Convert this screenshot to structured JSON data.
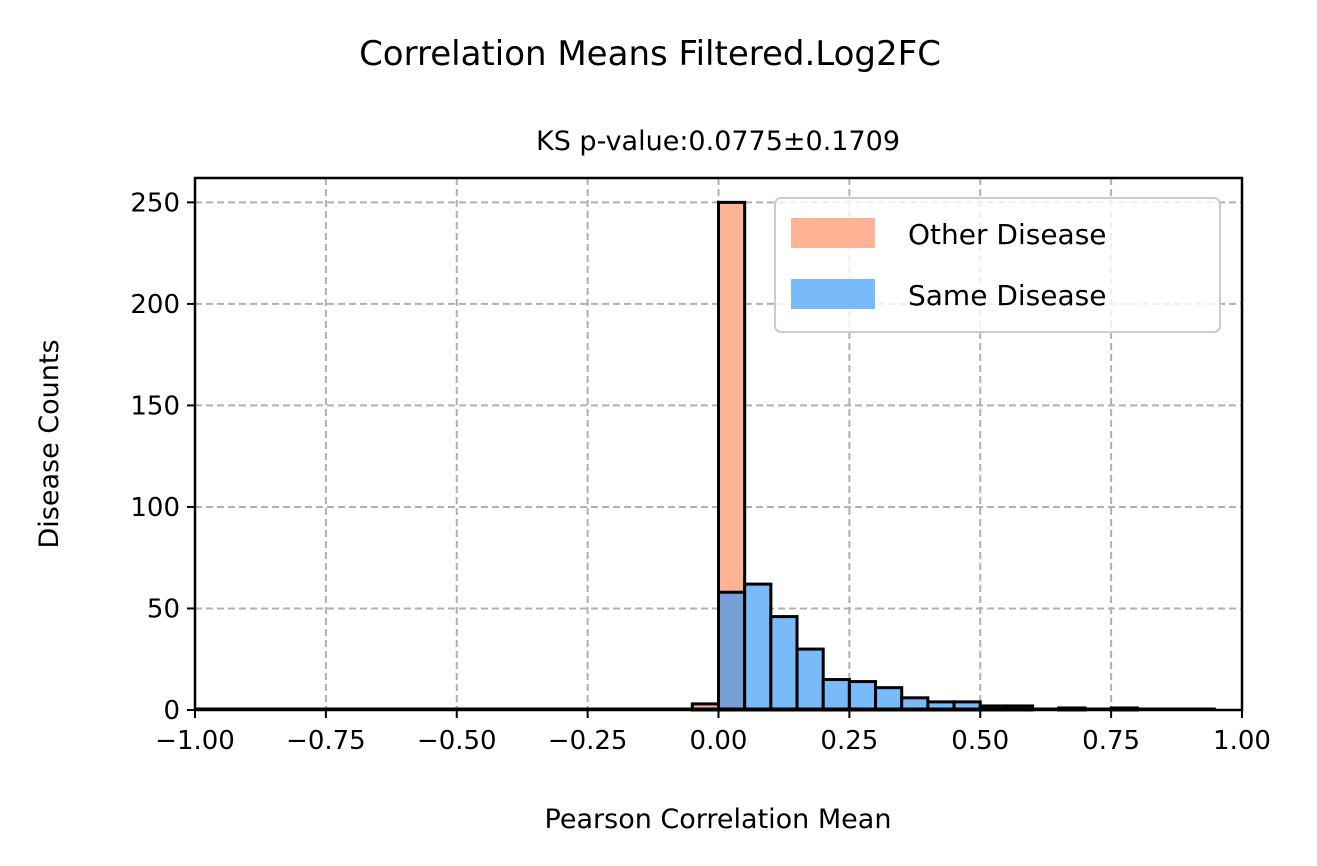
{
  "chart_data": {
    "type": "histogram",
    "title": "Correlation Means Filtered.Log2FC",
    "subtitle": "KS p-value:0.0775±0.1709",
    "xlabel": "Pearson Correlation Mean",
    "ylabel": "Disease Counts",
    "xlim": [
      -1.0,
      1.0
    ],
    "ylim": [
      0,
      262
    ],
    "xticks": [
      -1.0,
      -0.75,
      -0.5,
      -0.25,
      0.0,
      0.25,
      0.5,
      0.75,
      1.0
    ],
    "xtick_labels": [
      "−1.00",
      "−0.75",
      "−0.50",
      "−0.25",
      "0.00",
      "0.25",
      "0.50",
      "0.75",
      "1.00"
    ],
    "yticks": [
      0,
      50,
      100,
      150,
      200,
      250
    ],
    "ytick_labels": [
      "0",
      "50",
      "100",
      "150",
      "200",
      "250"
    ],
    "grid": true,
    "legend_position": "top-right",
    "series": [
      {
        "name": "Other Disease",
        "color": "#FFB294",
        "bins": [
          {
            "x0": -0.05,
            "x1": 0.0,
            "count": 3
          },
          {
            "x0": 0.0,
            "x1": 0.05,
            "count": 250
          },
          {
            "x0": 0.05,
            "x1": 0.1,
            "count": 4
          }
        ]
      },
      {
        "name": "Same Disease",
        "color": "#79BAF9",
        "bins": [
          {
            "x0": 0.0,
            "x1": 0.05,
            "count": 58
          },
          {
            "x0": 0.05,
            "x1": 0.1,
            "count": 62
          },
          {
            "x0": 0.1,
            "x1": 0.15,
            "count": 46
          },
          {
            "x0": 0.15,
            "x1": 0.2,
            "count": 30
          },
          {
            "x0": 0.2,
            "x1": 0.25,
            "count": 15
          },
          {
            "x0": 0.25,
            "x1": 0.3,
            "count": 14
          },
          {
            "x0": 0.3,
            "x1": 0.35,
            "count": 11
          },
          {
            "x0": 0.35,
            "x1": 0.4,
            "count": 6
          },
          {
            "x0": 0.4,
            "x1": 0.45,
            "count": 4
          },
          {
            "x0": 0.45,
            "x1": 0.5,
            "count": 4
          },
          {
            "x0": 0.5,
            "x1": 0.55,
            "count": 2
          },
          {
            "x0": 0.55,
            "x1": 0.6,
            "count": 2
          },
          {
            "x0": 0.65,
            "x1": 0.7,
            "count": 1
          },
          {
            "x0": 0.75,
            "x1": 0.8,
            "count": 1
          }
        ]
      }
    ],
    "overlap_color": "#789FD8"
  }
}
